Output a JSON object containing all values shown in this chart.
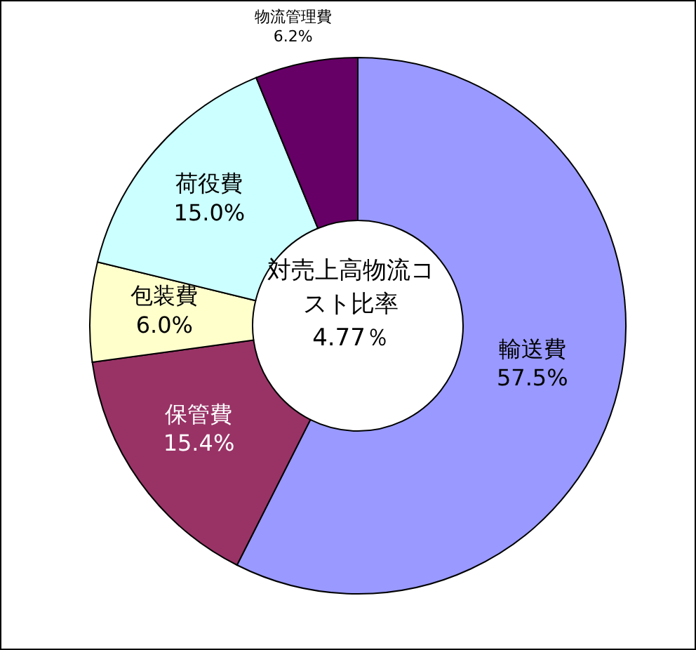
{
  "chart_data": {
    "type": "donut",
    "categories": [
      "輸送費",
      "保管費",
      "包装費",
      "荷役費",
      "物流管理費"
    ],
    "values": [
      57.5,
      15.4,
      6.0,
      15.0,
      6.2
    ],
    "value_labels": [
      "57.5%",
      "15.4%",
      "6.0%",
      "15.0%",
      "6.2%"
    ],
    "colors": [
      "#9999ff",
      "#993366",
      "#ffffcc",
      "#ccffff",
      "#660066"
    ],
    "annotations": [
      "対売上高物流コスト比率",
      "4.77％"
    ],
    "legend": false
  }
}
